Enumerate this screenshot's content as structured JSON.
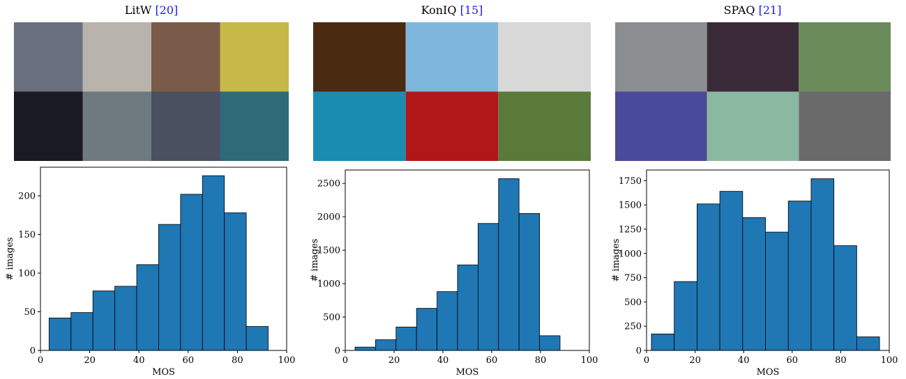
{
  "chart_data": [
    {
      "type": "histogram",
      "title": "LitW",
      "citation": "[20]",
      "x_label": "MOS",
      "y_label": "# images",
      "color": "#1f77b4",
      "bins": [
        3.5,
        12.4,
        21.3,
        30.2,
        39.1,
        48.0,
        56.9,
        65.8,
        74.7,
        83.6,
        92.5
      ],
      "counts": [
        42,
        49,
        77,
        83,
        111,
        163,
        202,
        226,
        178,
        31
      ],
      "xlim": [
        0,
        100
      ],
      "xticks": [
        0,
        20,
        40,
        60,
        80,
        100
      ],
      "ylim": [
        0,
        237
      ],
      "yticks": [
        0,
        50,
        100,
        150,
        200
      ]
    },
    {
      "type": "histogram",
      "title": "KonIQ",
      "citation": "[15]",
      "x_label": "MOS",
      "y_label": "# images",
      "color": "#1f77b4",
      "bins": [
        4,
        12.4,
        20.8,
        29.2,
        37.6,
        46,
        54.4,
        62.8,
        71.2,
        79.6,
        88
      ],
      "counts": [
        50,
        160,
        350,
        630,
        880,
        1280,
        1900,
        2570,
        2050,
        220
      ],
      "xlim": [
        0,
        100
      ],
      "xticks": [
        0,
        20,
        40,
        60,
        80,
        100
      ],
      "ylim": [
        0,
        2700
      ],
      "yticks": [
        0,
        500,
        1000,
        1500,
        2000,
        2500
      ]
    },
    {
      "type": "histogram",
      "title": "SPAQ",
      "citation": "[21]",
      "x_label": "MOS",
      "y_label": "# images",
      "color": "#1f77b4",
      "bins": [
        2,
        11.4,
        20.8,
        30.2,
        39.6,
        49,
        58.4,
        67.8,
        77.2,
        86.6,
        96
      ],
      "counts": [
        170,
        710,
        1510,
        1640,
        1370,
        1220,
        1540,
        1770,
        1080,
        140
      ],
      "xlim": [
        0,
        100
      ],
      "xticks": [
        0,
        20,
        40,
        60,
        80,
        100
      ],
      "ylim": [
        0,
        1860
      ],
      "yticks": [
        0,
        250,
        500,
        750,
        1000,
        1250,
        1500,
        1750
      ]
    }
  ]
}
